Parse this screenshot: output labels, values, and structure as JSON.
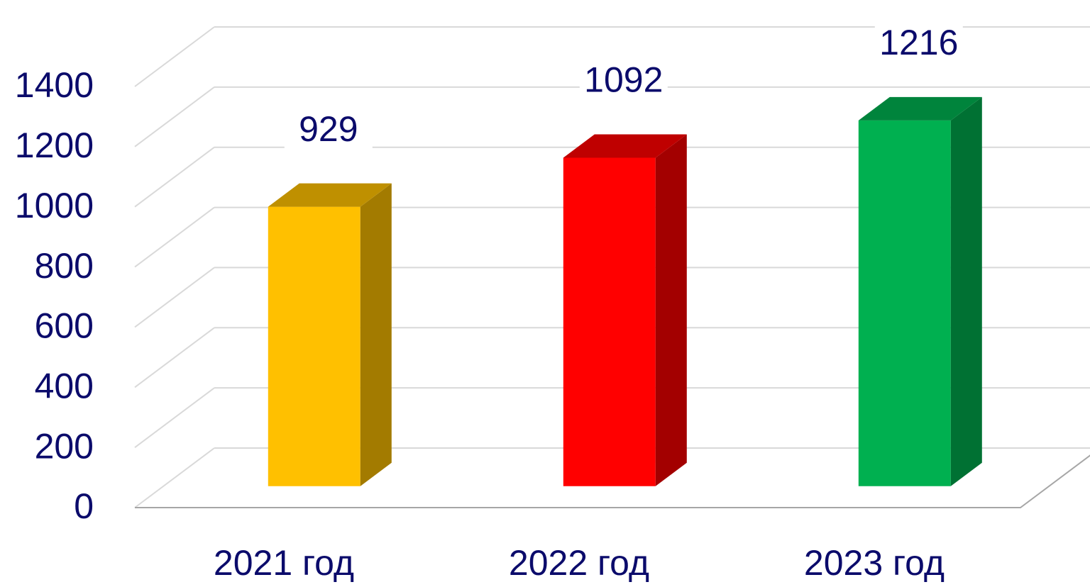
{
  "chart_data": {
    "type": "bar3d",
    "categories": [
      "2021 год",
      "2022 год",
      "2023 год"
    ],
    "values": [
      929,
      1092,
      1216
    ],
    "colors": [
      "#FFC000",
      "#FF0000",
      "#00B050"
    ],
    "ylim": [
      0,
      1400
    ],
    "yticks": [
      0,
      200,
      400,
      600,
      800,
      1000,
      1200,
      1400
    ],
    "grid": true
  }
}
